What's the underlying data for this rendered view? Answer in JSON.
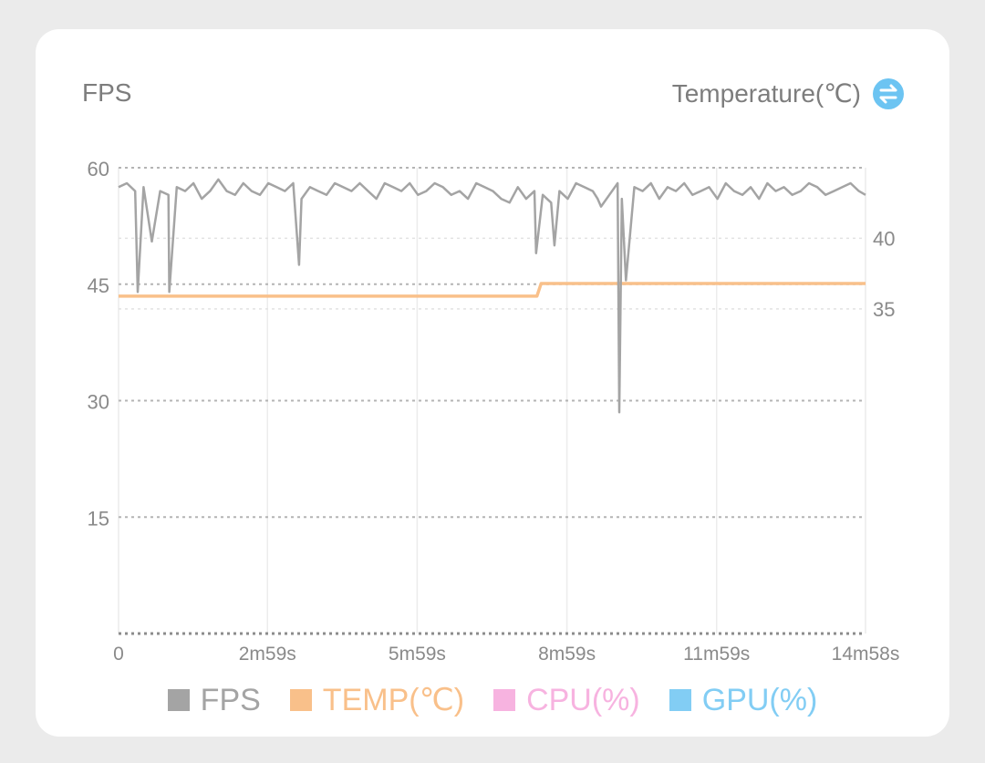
{
  "header": {
    "left_title": "FPS",
    "right_title": "Temperature(℃)",
    "swap_icon": "swap-arrows-icon"
  },
  "chart_data": {
    "type": "line",
    "x_ticks": [
      "0",
      "2m59s",
      "5m59s",
      "8m59s",
      "11m59s",
      "14m58s"
    ],
    "x_tick_seconds": [
      0,
      179,
      359,
      539,
      719,
      898
    ],
    "duration_seconds": 898,
    "y_left": {
      "label": "FPS",
      "ticks": [
        15,
        30,
        45,
        60
      ],
      "range": [
        0,
        60
      ]
    },
    "y_right": {
      "label": "Temperature(℃)",
      "ticks": [
        35,
        40
      ],
      "range": [
        12,
        45
      ]
    },
    "grid": true,
    "legend_position": "bottom",
    "legend": [
      {
        "name": "FPS",
        "color": "#a4a4a4"
      },
      {
        "name": "TEMP(℃)",
        "color": "#f9c08a"
      },
      {
        "name": "CPU(%)",
        "color": "#f7b3e0"
      },
      {
        "name": "GPU(%)",
        "color": "#82cdf4"
      }
    ],
    "series": [
      {
        "name": "FPS",
        "color": "#a4a4a4",
        "x": [
          0,
          10,
          20,
          23,
          30,
          40,
          50,
          60,
          61,
          70,
          80,
          90,
          100,
          110,
          120,
          130,
          140,
          150,
          160,
          170,
          180,
          190,
          200,
          210,
          217,
          220,
          230,
          240,
          250,
          260,
          270,
          280,
          290,
          300,
          310,
          320,
          330,
          340,
          350,
          360,
          370,
          380,
          390,
          400,
          410,
          420,
          430,
          440,
          450,
          460,
          470,
          480,
          490,
          500,
          502,
          510,
          520,
          524,
          530,
          540,
          550,
          560,
          570,
          576,
          580,
          590,
          600,
          602,
          605,
          610,
          620,
          630,
          640,
          650,
          660,
          670,
          680,
          690,
          700,
          710,
          720,
          730,
          740,
          750,
          760,
          770,
          780,
          790,
          800,
          810,
          820,
          830,
          840,
          850,
          860,
          870,
          880,
          890,
          898
        ],
        "y": [
          57.5,
          58,
          57,
          44,
          57.5,
          50.5,
          57,
          56.5,
          44,
          57.5,
          57,
          58,
          56,
          57,
          58.5,
          57,
          56.5,
          58,
          57,
          56.5,
          58,
          57.5,
          57,
          58,
          47.5,
          56,
          57.5,
          57,
          56.5,
          58,
          57.5,
          57,
          58,
          57,
          56,
          58,
          57.5,
          57,
          58,
          56.5,
          57,
          58,
          57.5,
          56.5,
          57,
          56,
          58,
          57.5,
          57,
          56,
          55.5,
          57.5,
          56,
          57,
          49,
          56.5,
          55.5,
          50,
          57,
          56,
          58,
          57.5,
          57,
          56,
          55,
          56.5,
          58,
          28.5,
          56,
          45.5,
          57.5,
          57,
          58,
          56,
          57.5,
          57,
          58,
          56.5,
          57,
          57.5,
          56,
          58,
          57,
          56.5,
          57.5,
          56,
          58,
          57,
          57.5,
          56.5,
          57,
          58,
          57.5,
          56.5,
          57,
          57.5,
          58,
          57,
          56.5
        ]
      },
      {
        "name": "TEMP(℃)",
        "color": "#f9c08a",
        "x": [
          0,
          503,
          508,
          898
        ],
        "y": [
          35.9,
          35.9,
          36.8,
          36.8
        ]
      }
    ]
  }
}
